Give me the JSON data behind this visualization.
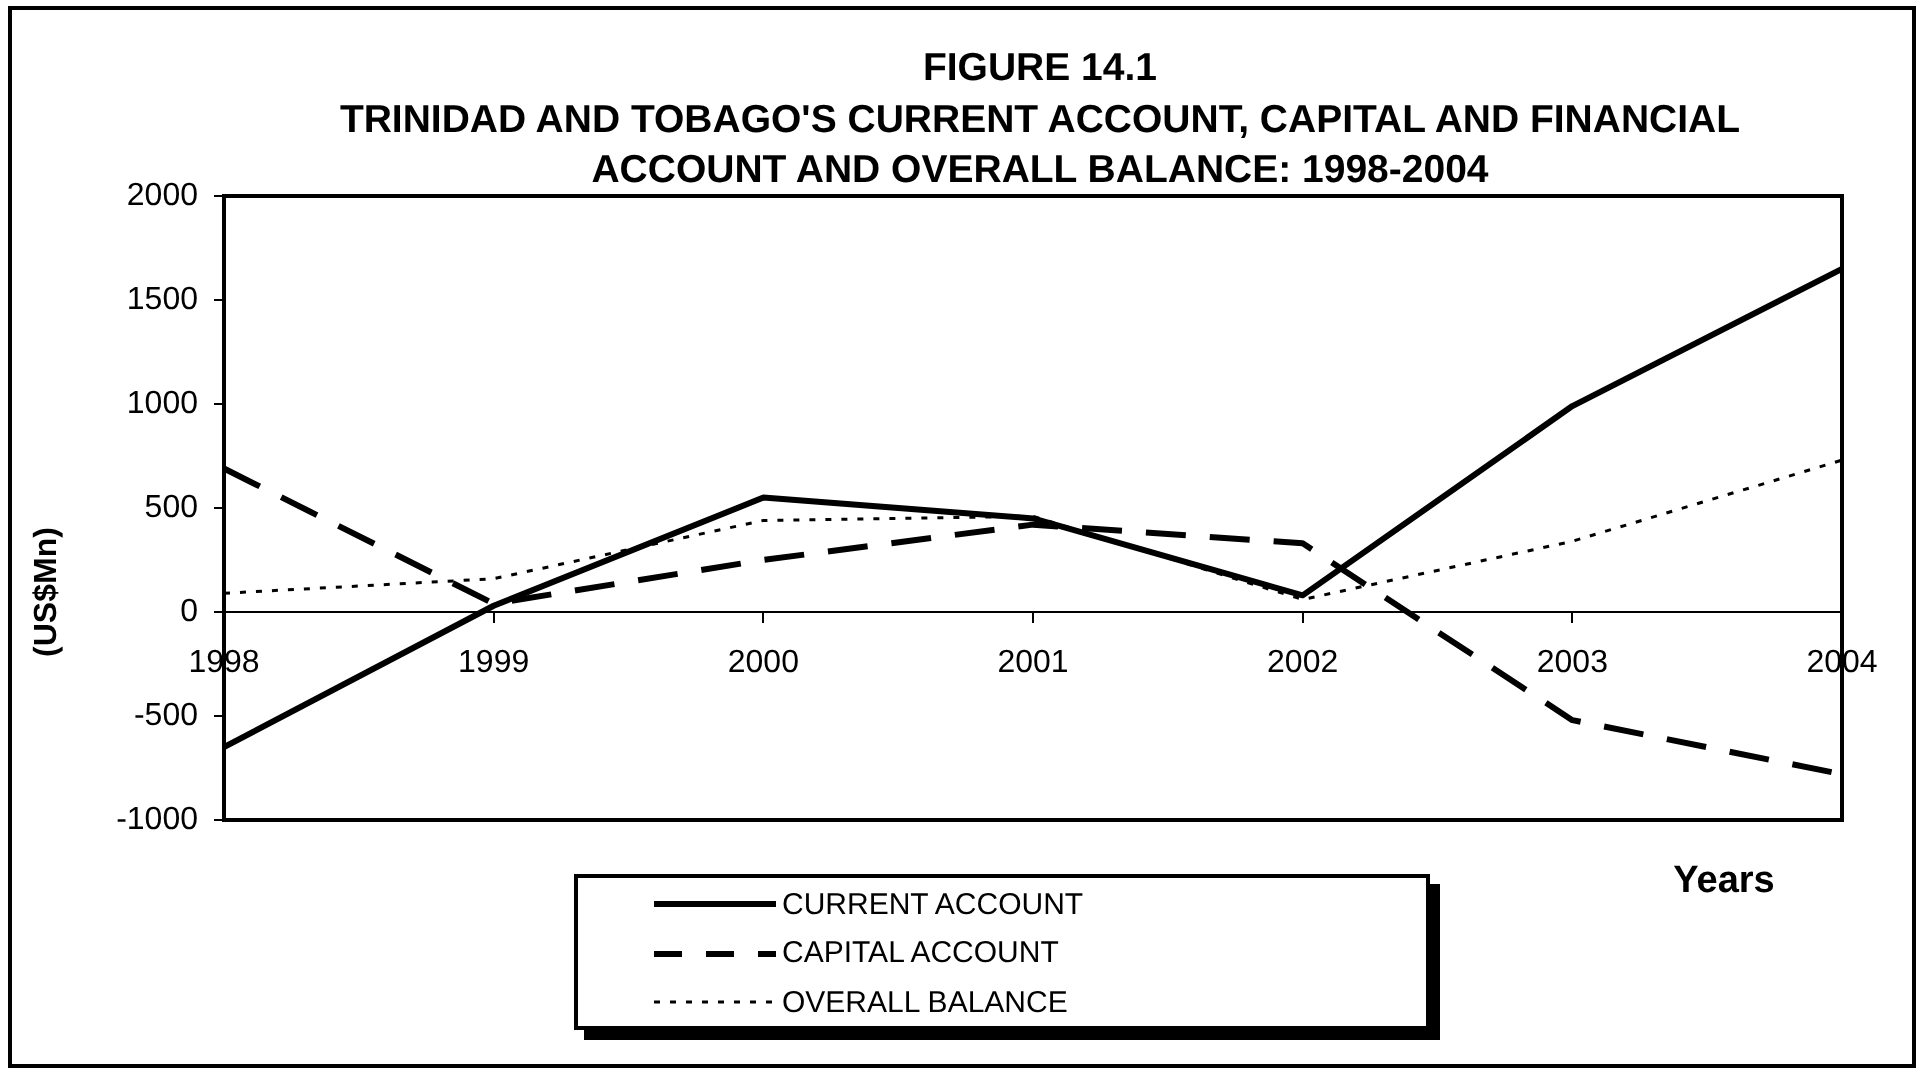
{
  "chart_data": {
    "type": "line",
    "title": "FIGURE 14.1",
    "subtitle": "TRINIDAD AND TOBAGO'S CURRENT ACCOUNT, CAPITAL AND FINANCIAL ACCOUNT AND OVERALL BALANCE: 1998-2004",
    "xlabel": "Years",
    "ylabel": "(US$Mn)",
    "categories": [
      "1998",
      "1999",
      "2000",
      "2001",
      "2002",
      "2003",
      "2004"
    ],
    "series": [
      {
        "name": "CURRENT ACCOUNT",
        "color": "#000000",
        "line_style": "solid",
        "values": [
          -650,
          30,
          550,
          450,
          80,
          990,
          1650
        ]
      },
      {
        "name": "CAPITAL ACCOUNT",
        "color": "#000000",
        "line_style": "dashed",
        "values": [
          690,
          40,
          250,
          420,
          330,
          -520,
          -780
        ]
      },
      {
        "name": "OVERALL BALANCE",
        "color": "#000000",
        "line_style": "dotted",
        "values": [
          90,
          160,
          440,
          460,
          60,
          340,
          730
        ]
      }
    ],
    "ylim": [
      -1000,
      2000
    ],
    "yticks": [
      -1000,
      -500,
      0,
      500,
      1000,
      1500,
      2000
    ],
    "legend": "bottom",
    "marker": "none"
  }
}
